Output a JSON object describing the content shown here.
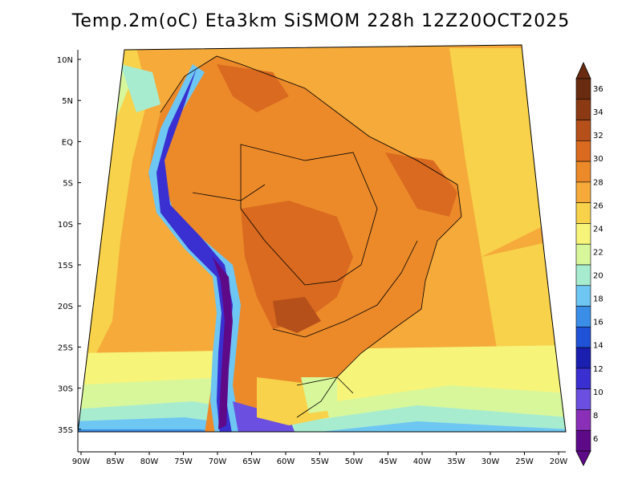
{
  "title": "Temp.2m(oC) Eta3km SiSMOM 228h 12Z20OCT2025",
  "lat_labels": [
    "10N",
    "5N",
    "EQ",
    "5S",
    "10S",
    "15S",
    "20S",
    "25S",
    "30S",
    "35S"
  ],
  "lon_labels": [
    "90W",
    "85W",
    "80W",
    "75W",
    "70W",
    "65W",
    "60W",
    "55W",
    "50W",
    "45W",
    "40W",
    "35W",
    "30W",
    "25W",
    "20W"
  ],
  "colorbar": {
    "labels": [
      "36",
      "34",
      "32",
      "30",
      "28",
      "26",
      "24",
      "22",
      "20",
      "18",
      "16",
      "14",
      "12",
      "10",
      "8",
      "6"
    ],
    "colors": [
      "#6a2c10",
      "#8b3a13",
      "#b5501a",
      "#d96a1f",
      "#ec8a2a",
      "#f5aa3a",
      "#f7d24a",
      "#f7f47a",
      "#d8f79a",
      "#a8ecd0",
      "#6ec6f2",
      "#3a8ee8",
      "#1f52d6",
      "#1a1fb0",
      "#3a2fd0",
      "#6a4fe0",
      "#8a2fb8",
      "#5e0a88"
    ]
  },
  "colors": {
    "ocean_warm": "#f5aa3a",
    "ocean_mid": "#f7d24a",
    "ocean_cool": "#f7f47a",
    "land_hot": "#d96a1f",
    "land_very_hot": "#b5501a",
    "andes_cold": "#6a4fe0",
    "andes_very_cold": "#5e0a88"
  }
}
